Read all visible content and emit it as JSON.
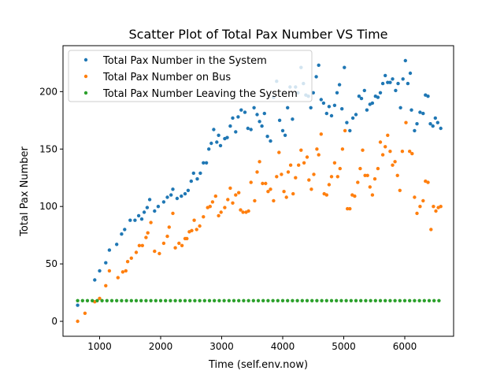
{
  "chart_data": {
    "type": "scatter",
    "title": "Scatter Plot of Total Pax Number VS Time",
    "xlabel": "Time (self.env.now)",
    "ylabel": "Total Pax Number",
    "xlim": [
      400,
      6800
    ],
    "ylim": [
      -13,
      240
    ],
    "xticks": [
      1000,
      2000,
      3000,
      4000,
      5000,
      6000
    ],
    "yticks": [
      0,
      50,
      100,
      150,
      200
    ],
    "grid": false,
    "legend_position": "top-left",
    "series": [
      {
        "name": "Total Pax Number in the System",
        "color": "#1f77b4",
        "points": [
          [
            640,
            14
          ],
          [
            920,
            36
          ],
          [
            1000,
            44
          ],
          [
            1100,
            51
          ],
          [
            1160,
            62
          ],
          [
            1280,
            67
          ],
          [
            1360,
            76
          ],
          [
            1410,
            80
          ],
          [
            1500,
            88
          ],
          [
            1580,
            88
          ],
          [
            1640,
            92
          ],
          [
            1690,
            89
          ],
          [
            1730,
            95
          ],
          [
            1780,
            99
          ],
          [
            1820,
            106
          ],
          [
            1900,
            96
          ],
          [
            1960,
            100
          ],
          [
            2050,
            104
          ],
          [
            2110,
            108
          ],
          [
            2170,
            110
          ],
          [
            2200,
            115
          ],
          [
            2270,
            107
          ],
          [
            2340,
            109
          ],
          [
            2400,
            111
          ],
          [
            2450,
            114
          ],
          [
            2500,
            122
          ],
          [
            2540,
            129
          ],
          [
            2600,
            124
          ],
          [
            2650,
            129
          ],
          [
            2700,
            138
          ],
          [
            2750,
            138
          ],
          [
            2790,
            150
          ],
          [
            2830,
            155
          ],
          [
            2870,
            167
          ],
          [
            2920,
            156
          ],
          [
            2950,
            162
          ],
          [
            2980,
            153
          ],
          [
            3050,
            159
          ],
          [
            3090,
            160
          ],
          [
            3140,
            170
          ],
          [
            3180,
            177
          ],
          [
            3230,
            165
          ],
          [
            3270,
            178
          ],
          [
            3320,
            184
          ],
          [
            3380,
            182
          ],
          [
            3430,
            168
          ],
          [
            3480,
            167
          ],
          [
            3530,
            186
          ],
          [
            3580,
            180
          ],
          [
            3620,
            174
          ],
          [
            3660,
            170
          ],
          [
            3700,
            181
          ],
          [
            3750,
            161
          ],
          [
            3800,
            157
          ],
          [
            3850,
            195
          ],
          [
            3900,
            209
          ],
          [
            3950,
            175
          ],
          [
            4000,
            166
          ],
          [
            4040,
            162
          ],
          [
            4080,
            186
          ],
          [
            4120,
            204
          ],
          [
            4160,
            176
          ],
          [
            4210,
            204
          ],
          [
            4250,
            199
          ],
          [
            4300,
            221
          ],
          [
            4340,
            207
          ],
          [
            4380,
            197
          ],
          [
            4420,
            196
          ],
          [
            4460,
            186
          ],
          [
            4500,
            199
          ],
          [
            4550,
            213
          ],
          [
            4590,
            223
          ],
          [
            4630,
            193
          ],
          [
            4670,
            190
          ],
          [
            4720,
            181
          ],
          [
            4760,
            187
          ],
          [
            4800,
            179
          ],
          [
            4850,
            188
          ],
          [
            4890,
            199
          ],
          [
            4930,
            206
          ],
          [
            4970,
            185
          ],
          [
            5010,
            221
          ],
          [
            5050,
            173
          ],
          [
            5100,
            166
          ],
          [
            5150,
            177
          ],
          [
            5200,
            180
          ],
          [
            5250,
            196
          ],
          [
            5290,
            194
          ],
          [
            5340,
            201
          ],
          [
            5380,
            184
          ],
          [
            5430,
            189
          ],
          [
            5470,
            190
          ],
          [
            5520,
            196
          ],
          [
            5560,
            195
          ],
          [
            5600,
            199
          ],
          [
            5640,
            207
          ],
          [
            5680,
            214
          ],
          [
            5720,
            208
          ],
          [
            5760,
            208
          ],
          [
            5800,
            211
          ],
          [
            5850,
            201
          ],
          [
            5890,
            207
          ],
          [
            5930,
            186
          ],
          [
            5970,
            211
          ],
          [
            6010,
            227
          ],
          [
            6050,
            207
          ],
          [
            6090,
            216
          ],
          [
            6110,
            184
          ],
          [
            6160,
            166
          ],
          [
            6200,
            172
          ],
          [
            6250,
            182
          ],
          [
            6300,
            181
          ],
          [
            6340,
            197
          ],
          [
            6380,
            196
          ],
          [
            6420,
            172
          ],
          [
            6460,
            170
          ],
          [
            6500,
            177
          ],
          [
            6540,
            173
          ],
          [
            6590,
            168
          ]
        ]
      },
      {
        "name": "Total Pax Number on Bus",
        "color": "#ff7f0e",
        "points": [
          [
            640,
            0
          ],
          [
            760,
            7
          ],
          [
            920,
            17
          ],
          [
            1000,
            20
          ],
          [
            1100,
            31
          ],
          [
            1160,
            44
          ],
          [
            1300,
            38
          ],
          [
            1380,
            43
          ],
          [
            1430,
            44
          ],
          [
            1460,
            52
          ],
          [
            1520,
            55
          ],
          [
            1600,
            60
          ],
          [
            1650,
            66
          ],
          [
            1700,
            66
          ],
          [
            1760,
            73
          ],
          [
            1790,
            77
          ],
          [
            1840,
            86
          ],
          [
            1900,
            61
          ],
          [
            1980,
            59
          ],
          [
            2050,
            68
          ],
          [
            2110,
            74
          ],
          [
            2140,
            82
          ],
          [
            2200,
            94
          ],
          [
            2240,
            64
          ],
          [
            2300,
            68
          ],
          [
            2350,
            66
          ],
          [
            2400,
            72
          ],
          [
            2430,
            72
          ],
          [
            2470,
            78
          ],
          [
            2510,
            79
          ],
          [
            2550,
            88
          ],
          [
            2590,
            80
          ],
          [
            2640,
            83
          ],
          [
            2700,
            91
          ],
          [
            2770,
            99
          ],
          [
            2810,
            100
          ],
          [
            2850,
            104
          ],
          [
            2900,
            109
          ],
          [
            2950,
            92
          ],
          [
            2990,
            95
          ],
          [
            3050,
            99
          ],
          [
            3100,
            106
          ],
          [
            3140,
            116
          ],
          [
            3180,
            103
          ],
          [
            3230,
            110
          ],
          [
            3280,
            112
          ],
          [
            3310,
            97
          ],
          [
            3350,
            95
          ],
          [
            3400,
            95
          ],
          [
            3440,
            96
          ],
          [
            3480,
            121
          ],
          [
            3540,
            105
          ],
          [
            3580,
            130
          ],
          [
            3620,
            139
          ],
          [
            3670,
            120
          ],
          [
            3720,
            120
          ],
          [
            3760,
            113
          ],
          [
            3800,
            115
          ],
          [
            3850,
            105
          ],
          [
            3900,
            126
          ],
          [
            3940,
            147
          ],
          [
            3980,
            128
          ],
          [
            4020,
            113
          ],
          [
            4060,
            108
          ],
          [
            4090,
            130
          ],
          [
            4130,
            136
          ],
          [
            4170,
            111
          ],
          [
            4210,
            125
          ],
          [
            4260,
            136
          ],
          [
            4300,
            149
          ],
          [
            4350,
            138
          ],
          [
            4400,
            143
          ],
          [
            4430,
            123
          ],
          [
            4470,
            115
          ],
          [
            4510,
            128
          ],
          [
            4560,
            150
          ],
          [
            4590,
            145
          ],
          [
            4630,
            163
          ],
          [
            4680,
            111
          ],
          [
            4720,
            110
          ],
          [
            4760,
            119
          ],
          [
            4800,
            126
          ],
          [
            4850,
            138
          ],
          [
            4900,
            126
          ],
          [
            4940,
            133
          ],
          [
            4980,
            150
          ],
          [
            5020,
            166
          ],
          [
            5060,
            98
          ],
          [
            5100,
            98
          ],
          [
            5140,
            110
          ],
          [
            5180,
            109
          ],
          [
            5230,
            121
          ],
          [
            5270,
            133
          ],
          [
            5310,
            149
          ],
          [
            5350,
            127
          ],
          [
            5390,
            127
          ],
          [
            5430,
            117
          ],
          [
            5470,
            110
          ],
          [
            5510,
            124
          ],
          [
            5560,
            133
          ],
          [
            5600,
            156
          ],
          [
            5640,
            145
          ],
          [
            5680,
            152
          ],
          [
            5720,
            162
          ],
          [
            5760,
            148
          ],
          [
            5800,
            136
          ],
          [
            5840,
            139
          ],
          [
            5880,
            127
          ],
          [
            5920,
            114
          ],
          [
            5960,
            148
          ],
          [
            6020,
            173
          ],
          [
            6080,
            148
          ],
          [
            6120,
            146
          ],
          [
            6160,
            108
          ],
          [
            6200,
            94
          ],
          [
            6250,
            100
          ],
          [
            6300,
            105
          ],
          [
            6340,
            122
          ],
          [
            6380,
            121
          ],
          [
            6430,
            80
          ],
          [
            6470,
            100
          ],
          [
            6510,
            96
          ],
          [
            6550,
            99
          ],
          [
            6590,
            100
          ]
        ]
      },
      {
        "name": "Total Pax Number Leaving the System",
        "color": "#2ca02c",
        "points": [
          [
            640,
            18
          ],
          [
            720,
            18
          ],
          [
            800,
            18
          ],
          [
            880,
            18
          ],
          [
            960,
            18
          ],
          [
            1040,
            18
          ],
          [
            1120,
            18
          ],
          [
            1200,
            18
          ],
          [
            1280,
            18
          ],
          [
            1360,
            18
          ],
          [
            1440,
            18
          ],
          [
            1520,
            18
          ],
          [
            1600,
            18
          ],
          [
            1680,
            18
          ],
          [
            1760,
            18
          ],
          [
            1840,
            18
          ],
          [
            1920,
            18
          ],
          [
            2000,
            18
          ],
          [
            2080,
            18
          ],
          [
            2160,
            18
          ],
          [
            2240,
            18
          ],
          [
            2320,
            18
          ],
          [
            2400,
            18
          ],
          [
            2480,
            18
          ],
          [
            2560,
            18
          ],
          [
            2640,
            18
          ],
          [
            2720,
            18
          ],
          [
            2800,
            18
          ],
          [
            2880,
            18
          ],
          [
            2960,
            18
          ],
          [
            3040,
            18
          ],
          [
            3120,
            18
          ],
          [
            3200,
            18
          ],
          [
            3280,
            18
          ],
          [
            3360,
            18
          ],
          [
            3440,
            18
          ],
          [
            3520,
            18
          ],
          [
            3600,
            18
          ],
          [
            3680,
            18
          ],
          [
            3760,
            18
          ],
          [
            3840,
            18
          ],
          [
            3920,
            18
          ],
          [
            4000,
            18
          ],
          [
            4080,
            18
          ],
          [
            4160,
            18
          ],
          [
            4240,
            18
          ],
          [
            4320,
            18
          ],
          [
            4400,
            18
          ],
          [
            4480,
            18
          ],
          [
            4560,
            18
          ],
          [
            4640,
            18
          ],
          [
            4720,
            18
          ],
          [
            4800,
            18
          ],
          [
            4880,
            18
          ],
          [
            4960,
            18
          ],
          [
            5040,
            18
          ],
          [
            5120,
            18
          ],
          [
            5200,
            18
          ],
          [
            5280,
            18
          ],
          [
            5360,
            18
          ],
          [
            5440,
            18
          ],
          [
            5520,
            18
          ],
          [
            5600,
            18
          ],
          [
            5680,
            18
          ],
          [
            5760,
            18
          ],
          [
            5840,
            18
          ],
          [
            5920,
            18
          ],
          [
            6000,
            18
          ],
          [
            6080,
            18
          ],
          [
            6160,
            18
          ],
          [
            6240,
            18
          ],
          [
            6320,
            18
          ],
          [
            6400,
            18
          ],
          [
            6480,
            18
          ],
          [
            6560,
            18
          ]
        ]
      }
    ]
  }
}
